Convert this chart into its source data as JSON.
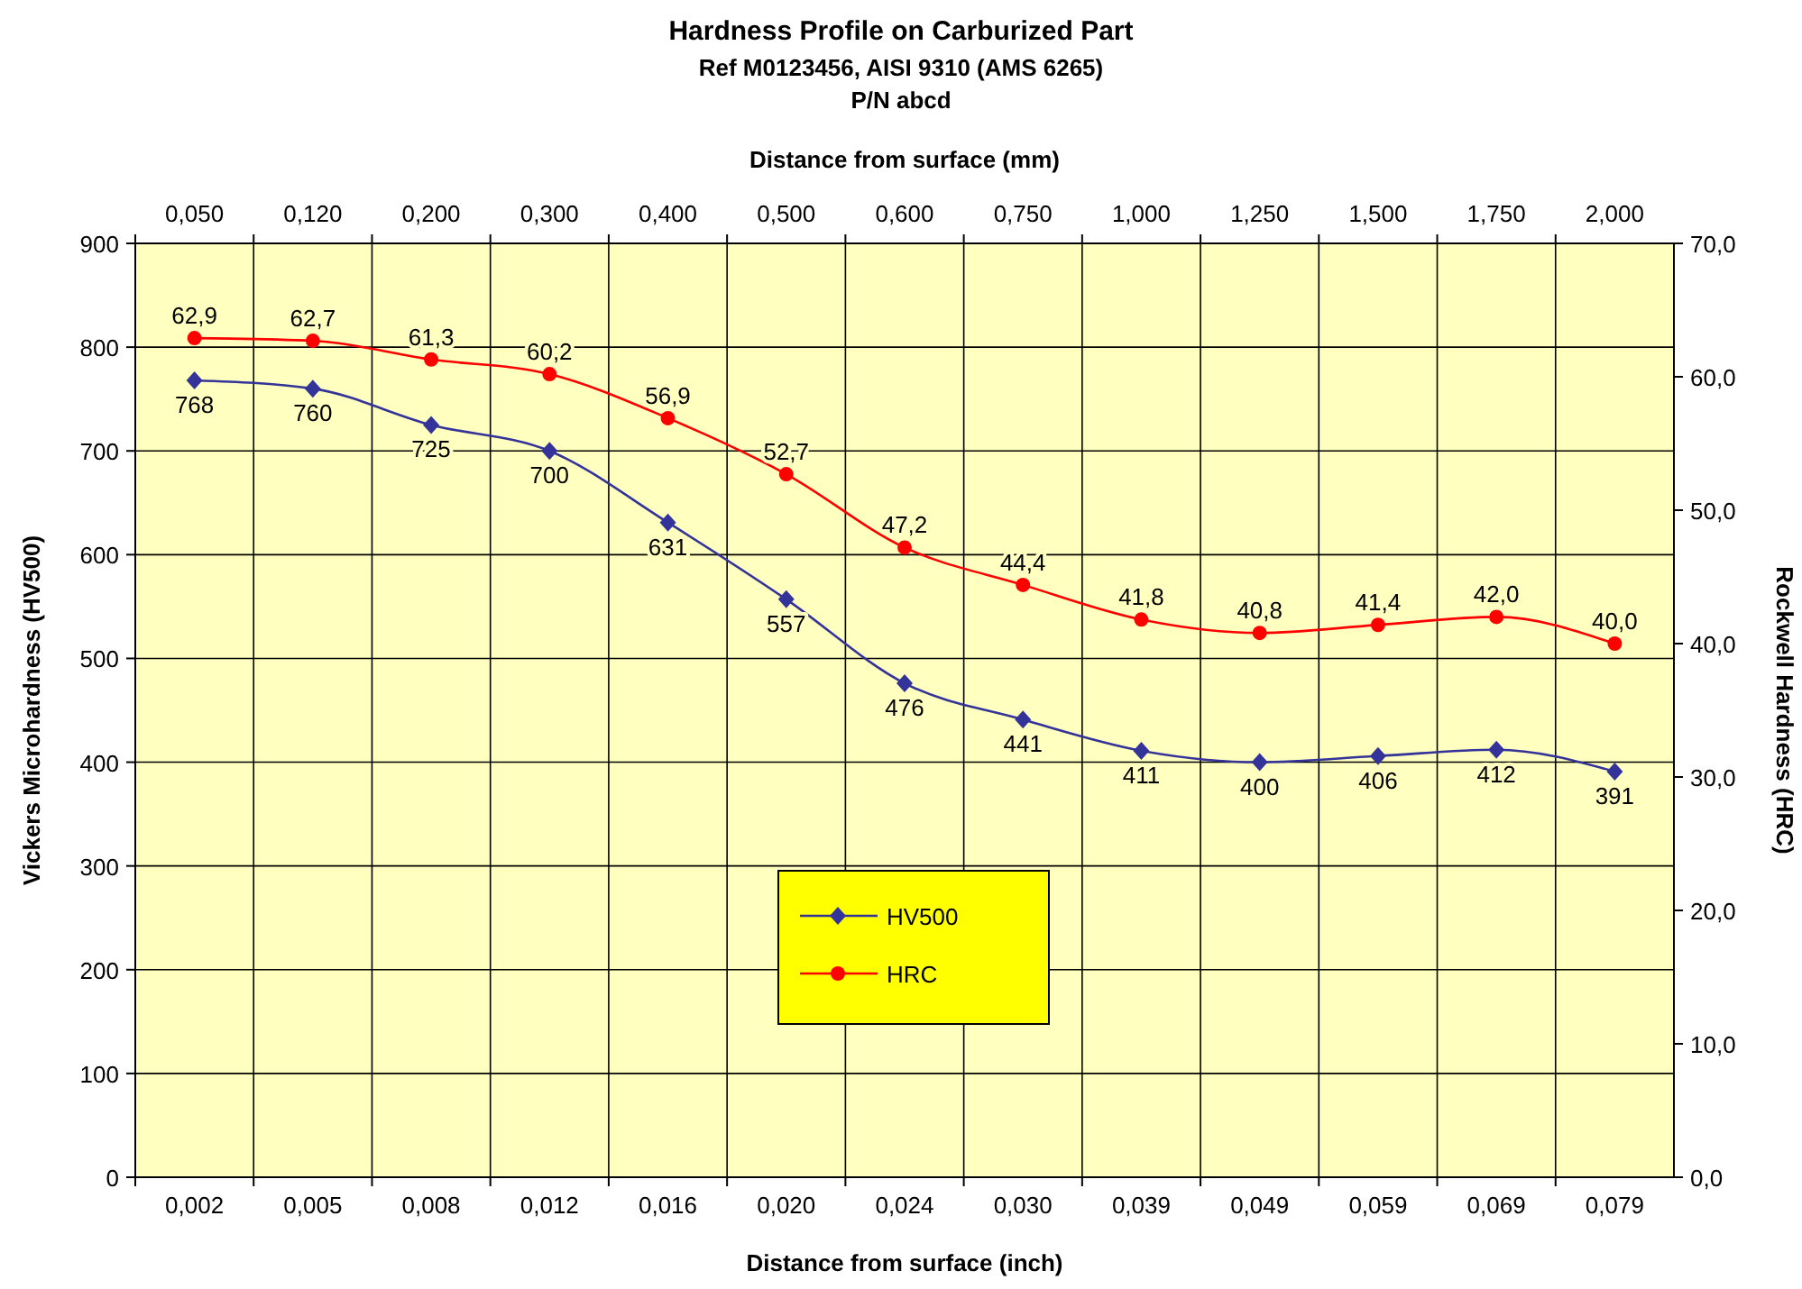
{
  "chart_data": {
    "type": "line",
    "title": "Hardness Profile on Carburized Part",
    "subtitle": "Ref M0123456, AISI 9310 (AMS 6265)\nP/N abcd",
    "xlabel": "Distance from surface (inch)",
    "x2label": "Distance from surface (mm)",
    "ylabel": "Vickers Microhardness (HV500)",
    "y2label": "Rockwell Hardness (HRC)",
    "categories": [
      "0,002",
      "0,005",
      "0,008",
      "0,012",
      "0,016",
      "0,020",
      "0,024",
      "0,030",
      "0,039",
      "0,049",
      "0,059",
      "0,069",
      "0,079"
    ],
    "annotations": [
      "0,050",
      "0,120",
      "0,200",
      "0,300",
      "0,400",
      "0,500",
      "0,600",
      "0,750",
      "1,000",
      "1,250",
      "1,500",
      "1,750",
      "2,000"
    ],
    "series": [
      {
        "name": "HV500",
        "color": "#333399",
        "marker": "diamond",
        "values": [
          768,
          760,
          725,
          700,
          631,
          557,
          476,
          441,
          411,
          400,
          406,
          412,
          391
        ],
        "value_labels": [
          "768",
          "760",
          "725",
          "700",
          "631",
          "557",
          "476",
          "441",
          "411",
          "400",
          "406",
          "412",
          "391"
        ]
      },
      {
        "name": "HRC",
        "color": "#ff0000",
        "marker": "circle",
        "axis": "y2",
        "values": [
          62.9,
          62.7,
          61.3,
          60.2,
          56.9,
          52.7,
          47.2,
          44.4,
          41.8,
          40.8,
          41.4,
          42.0,
          40.0
        ],
        "value_labels": [
          "62,9",
          "62,7",
          "61,3",
          "60,2",
          "56,9",
          "52,7",
          "47,2",
          "44,4",
          "41,8",
          "40,8",
          "41,4",
          "42,0",
          "40,0"
        ]
      }
    ],
    "ylim": [
      0,
      900
    ],
    "yticks": [
      0,
      100,
      200,
      300,
      400,
      500,
      600,
      700,
      800,
      900
    ],
    "y2lim": [
      0,
      70
    ],
    "y2ticks": [
      {
        "value": 0,
        "label": "0,0"
      },
      {
        "value": 10,
        "label": "10,0"
      },
      {
        "value": 20,
        "label": "20,0"
      },
      {
        "value": 30,
        "label": "30,0"
      },
      {
        "value": 40,
        "label": "40,0"
      },
      {
        "value": 50,
        "label": "50,0"
      },
      {
        "value": 60,
        "label": "60,0"
      },
      {
        "value": 70,
        "label": "70,0"
      }
    ],
    "grid": true,
    "legend": "bottom",
    "line_style": "solid"
  }
}
